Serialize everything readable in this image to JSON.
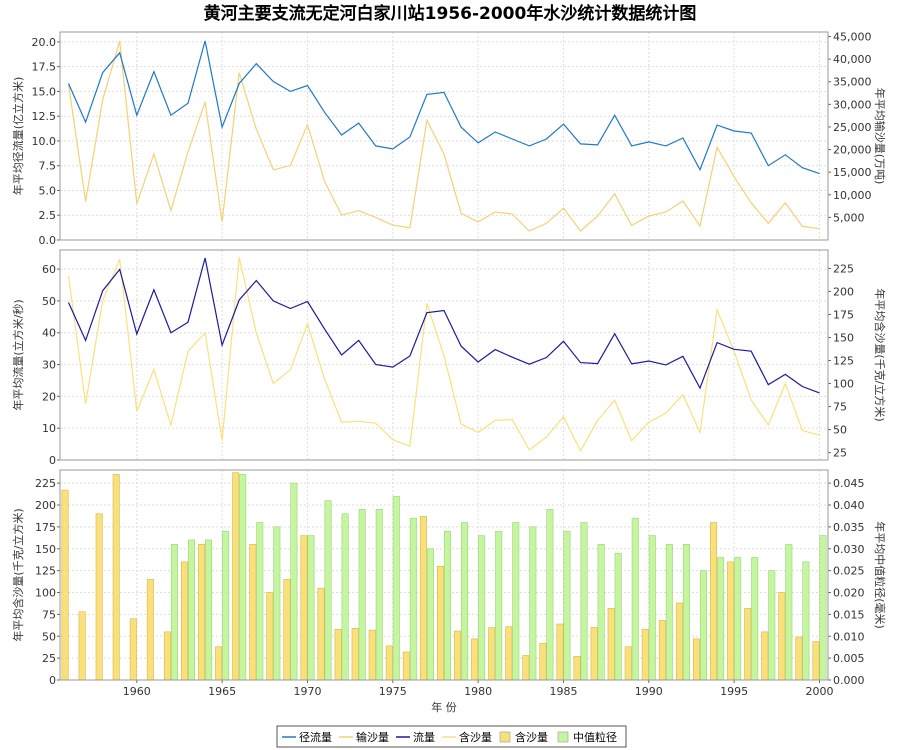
{
  "title": "黄河主要支流无定河白家川站1956-2000年水沙统计数据统计图",
  "years": [
    1956,
    1957,
    1958,
    1959,
    1960,
    1961,
    1962,
    1963,
    1964,
    1965,
    1966,
    1967,
    1968,
    1969,
    1970,
    1971,
    1972,
    1973,
    1974,
    1975,
    1976,
    1977,
    1978,
    1979,
    1980,
    1981,
    1982,
    1983,
    1984,
    1985,
    1986,
    1987,
    1988,
    1989,
    1990,
    1991,
    1992,
    1993,
    1994,
    1995,
    1996,
    1997,
    1998,
    1999,
    2000
  ],
  "colors": {
    "runoff": "#1f78c8",
    "sediment_load": "#f5d176",
    "flow": "#1a1aa0",
    "concentration_line": "#fbe07a",
    "concentration_bar": "#f9e07a",
    "grain_bar": "#c6f5a0",
    "frame": "#999999",
    "grid": "#dddddd"
  },
  "chart_data": [
    {
      "type": "line",
      "panel": "top",
      "ylabel_left": "年平均径流量(亿立方米)",
      "ylabel_right": "年平均输沙量(万吨)",
      "ylim_left": [
        0,
        21
      ],
      "ylim_right": [
        0,
        46000
      ],
      "yticks_left": [
        "0.0",
        "2.5",
        "5.0",
        "7.5",
        "10.0",
        "12.5",
        "15.0",
        "17.5",
        "20.0"
      ],
      "yticks_right": [
        "5,000",
        "10,000",
        "15,000",
        "20,000",
        "25,000",
        "30,000",
        "35,000",
        "40,000",
        "45,000"
      ],
      "series": [
        {
          "name": "径流量",
          "axis": "left",
          "values": [
            15.8,
            11.9,
            16.9,
            18.9,
            12.6,
            17.0,
            12.6,
            13.8,
            20.1,
            11.4,
            15.8,
            17.8,
            16.0,
            15.0,
            15.6,
            12.9,
            10.6,
            11.8,
            9.5,
            9.2,
            10.4,
            14.7,
            14.9,
            11.4,
            9.8,
            10.9,
            10.2,
            9.5,
            10.2,
            11.7,
            9.7,
            9.6,
            12.6,
            9.5,
            9.9,
            9.5,
            10.3,
            7.1,
            11.6,
            11.0,
            10.8,
            7.5,
            8.6,
            7.3,
            6.7
          ]
        },
        {
          "name": "输沙量",
          "axis": "right",
          "values": [
            34500,
            8500,
            31000,
            44000,
            8000,
            19000,
            6500,
            19500,
            30500,
            4000,
            37000,
            24500,
            15500,
            16500,
            25500,
            13000,
            5500,
            6500,
            5000,
            3300,
            2700,
            26500,
            19000,
            5900,
            4000,
            6200,
            5700,
            2000,
            3700,
            7000,
            2000,
            5300,
            10200,
            3200,
            5300,
            6200,
            8600,
            3100,
            20500,
            14000,
            8200,
            3700,
            8200,
            3000,
            2500
          ]
        }
      ]
    },
    {
      "type": "line",
      "panel": "middle",
      "ylabel_left": "年平均流量(立方米/秒)",
      "ylabel_right": "年平均含沙量(千克/立方米)",
      "ylim_left": [
        0,
        66
      ],
      "ylim_right": [
        17,
        245
      ],
      "yticks_left": [
        "0",
        "10",
        "20",
        "30",
        "40",
        "50",
        "60"
      ],
      "yticks_right": [
        "25",
        "50",
        "75",
        "100",
        "125",
        "150",
        "175",
        "200",
        "225"
      ],
      "series": [
        {
          "name": "流量",
          "axis": "left",
          "values": [
            49.5,
            37.6,
            53.2,
            59.9,
            39.6,
            53.5,
            40.0,
            43.3,
            63.5,
            36.1,
            50.3,
            56.4,
            50.0,
            47.6,
            49.8,
            41.2,
            33.0,
            37.6,
            30.0,
            29.2,
            32.7,
            46.3,
            47.0,
            35.8,
            30.8,
            34.7,
            32.3,
            30.1,
            32.2,
            37.3,
            30.6,
            30.3,
            39.7,
            30.2,
            31.1,
            29.9,
            32.6,
            22.6,
            36.9,
            34.8,
            34.2,
            23.7,
            26.9,
            23.1,
            21.1
          ]
        },
        {
          "name": "含沙量",
          "axis": "right",
          "values": [
            217,
            78,
            190,
            235,
            70,
            115,
            55,
            135,
            155,
            38,
            237,
            155,
            100,
            115,
            165,
            105,
            58,
            59,
            57,
            39,
            32,
            187,
            130,
            56,
            47,
            60,
            61,
            28,
            42,
            64,
            27,
            60,
            82,
            38,
            58,
            68,
            88,
            47,
            180,
            135,
            82,
            55,
            100,
            49,
            44
          ]
        }
      ]
    },
    {
      "type": "bar",
      "panel": "bottom",
      "xlabel": "年 份",
      "xticks": [
        "1960",
        "1965",
        "1970",
        "1975",
        "1980",
        "1985",
        "1990",
        "1995",
        "2000"
      ],
      "ylabel_left": "年平均含沙量(千克/立方米)",
      "ylabel_right": "年平均中值粒径(毫米)",
      "ylim_left": [
        0,
        240
      ],
      "ylim_right": [
        0,
        0.048
      ],
      "yticks_left": [
        "0",
        "25",
        "50",
        "75",
        "100",
        "125",
        "150",
        "175",
        "200",
        "225"
      ],
      "yticks_right": [
        "0.000",
        "0.005",
        "0.010",
        "0.015",
        "0.020",
        "0.025",
        "0.030",
        "0.035",
        "0.040",
        "0.045"
      ],
      "series": [
        {
          "name": "含沙量",
          "axis": "left",
          "values": [
            217,
            78,
            190,
            235,
            70,
            115,
            55,
            135,
            155,
            38,
            237,
            155,
            100,
            115,
            165,
            105,
            58,
            59,
            57,
            39,
            32,
            187,
            130,
            56,
            47,
            60,
            61,
            28,
            42,
            64,
            27,
            60,
            82,
            38,
            58,
            68,
            88,
            47,
            180,
            135,
            82,
            55,
            100,
            49,
            44
          ]
        },
        {
          "name": "中值粒径",
          "axis": "right",
          "values": [
            null,
            null,
            null,
            null,
            null,
            null,
            0.031,
            0.032,
            0.032,
            0.034,
            0.047,
            0.036,
            0.035,
            0.045,
            0.033,
            0.041,
            0.038,
            0.039,
            0.039,
            0.042,
            0.037,
            0.03,
            0.034,
            0.036,
            0.033,
            0.034,
            0.036,
            0.035,
            0.039,
            0.034,
            0.036,
            0.031,
            0.029,
            0.037,
            0.033,
            0.031,
            0.031,
            0.025,
            0.028,
            0.028,
            0.028,
            0.025,
            0.031,
            0.027,
            0.033
          ]
        }
      ]
    }
  ],
  "legend": [
    {
      "label": "径流量",
      "kind": "line",
      "color_key": "runoff"
    },
    {
      "label": "输沙量",
      "kind": "line",
      "color_key": "sediment_load"
    },
    {
      "label": "流量",
      "kind": "line",
      "color_key": "flow"
    },
    {
      "label": "含沙量",
      "kind": "line",
      "color_key": "concentration_line"
    },
    {
      "label": "含沙量",
      "kind": "box",
      "color_key": "concentration_bar"
    },
    {
      "label": "中值粒径",
      "kind": "box",
      "color_key": "grain_bar"
    }
  ]
}
